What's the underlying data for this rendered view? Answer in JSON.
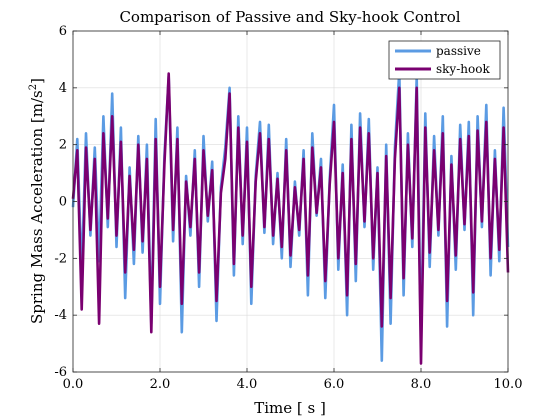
{
  "chart_data": {
    "type": "line",
    "title": "Comparison of Passive and Sky-hook Control",
    "xlabel": "Time [ s ]",
    "ylabel_main": "Spring Mass Acceleration [m/s",
    "ylabel_sup": "2",
    "ylabel_end": "]",
    "xlim": [
      0,
      10
    ],
    "ylim": [
      -6,
      6
    ],
    "xticks": [
      0,
      2,
      4,
      6,
      8,
      10
    ],
    "xtick_labels": [
      "0.0",
      "2.0",
      "4.0",
      "6.0",
      "8.0",
      "10.0"
    ],
    "yticks": [
      -6,
      -4,
      -2,
      0,
      2,
      4,
      6
    ],
    "ytick_labels": [
      "-6",
      "-4",
      "-2",
      "0",
      "2",
      "4",
      "6"
    ],
    "grid": true,
    "legend_position": "top-right",
    "series": [
      {
        "name": "passive",
        "color": "#5b9be3",
        "x": [
          0.0,
          0.1,
          0.2,
          0.3,
          0.4,
          0.5,
          0.6,
          0.7,
          0.8,
          0.9,
          1.0,
          1.1,
          1.2,
          1.3,
          1.4,
          1.5,
          1.6,
          1.7,
          1.8,
          1.9,
          2.0,
          2.1,
          2.2,
          2.3,
          2.4,
          2.5,
          2.6,
          2.7,
          2.8,
          2.9,
          3.0,
          3.1,
          3.2,
          3.3,
          3.4,
          3.5,
          3.6,
          3.7,
          3.8,
          3.9,
          4.0,
          4.1,
          4.2,
          4.3,
          4.4,
          4.5,
          4.6,
          4.7,
          4.8,
          4.9,
          5.0,
          5.1,
          5.2,
          5.3,
          5.4,
          5.5,
          5.6,
          5.7,
          5.8,
          5.9,
          6.0,
          6.1,
          6.2,
          6.3,
          6.4,
          6.5,
          6.6,
          6.7,
          6.8,
          6.9,
          7.0,
          7.1,
          7.2,
          7.3,
          7.4,
          7.5,
          7.6,
          7.7,
          7.8,
          7.9,
          8.0,
          8.1,
          8.2,
          8.3,
          8.4,
          8.5,
          8.6,
          8.7,
          8.8,
          8.9,
          9.0,
          9.1,
          9.2,
          9.3,
          9.4,
          9.5,
          9.6,
          9.7,
          9.8,
          9.9,
          10.0
        ],
        "y": [
          -0.2,
          2.2,
          -2.6,
          2.4,
          -1.2,
          1.9,
          -2.1,
          3.0,
          -0.9,
          3.8,
          -1.6,
          2.6,
          -3.4,
          1.2,
          -2.2,
          2.3,
          -1.8,
          2.0,
          -4.3,
          2.9,
          -3.6,
          1.6,
          4.4,
          -1.4,
          2.6,
          -4.6,
          0.9,
          -1.2,
          1.8,
          -3.0,
          2.3,
          -0.7,
          1.4,
          -4.2,
          0.5,
          1.9,
          4.0,
          -2.6,
          3.0,
          -1.5,
          2.6,
          -3.6,
          0.9,
          2.8,
          -1.1,
          2.7,
          -1.5,
          1.0,
          -2.0,
          2.2,
          -2.3,
          0.7,
          -1.2,
          1.8,
          -3.3,
          2.4,
          -0.5,
          1.5,
          -3.4,
          0.8,
          3.4,
          -2.4,
          1.3,
          -4.0,
          2.7,
          -2.8,
          3.1,
          -0.9,
          2.9,
          -2.4,
          1.2,
          -5.6,
          2.0,
          -4.3,
          1.9,
          4.6,
          -3.3,
          2.4,
          -1.6,
          4.4,
          -5.0,
          3.1,
          -2.3,
          2.3,
          -1.2,
          3.0,
          -4.4,
          1.6,
          -2.4,
          2.7,
          -1.0,
          2.8,
          -4.0,
          3.0,
          -0.9,
          3.4,
          -2.6,
          1.8,
          -2.1,
          3.3,
          -1.6
        ]
      },
      {
        "name": "sky-hook",
        "color": "#7a0070",
        "x": [
          0.0,
          0.1,
          0.2,
          0.3,
          0.4,
          0.5,
          0.6,
          0.7,
          0.8,
          0.9,
          1.0,
          1.1,
          1.2,
          1.3,
          1.4,
          1.5,
          1.6,
          1.7,
          1.8,
          1.9,
          2.0,
          2.1,
          2.2,
          2.3,
          2.4,
          2.5,
          2.6,
          2.7,
          2.8,
          2.9,
          3.0,
          3.1,
          3.2,
          3.3,
          3.4,
          3.5,
          3.6,
          3.7,
          3.8,
          3.9,
          4.0,
          4.1,
          4.2,
          4.3,
          4.4,
          4.5,
          4.6,
          4.7,
          4.8,
          4.9,
          5.0,
          5.1,
          5.2,
          5.3,
          5.4,
          5.5,
          5.6,
          5.7,
          5.8,
          5.9,
          6.0,
          6.1,
          6.2,
          6.3,
          6.4,
          6.5,
          6.6,
          6.7,
          6.8,
          6.9,
          7.0,
          7.1,
          7.2,
          7.3,
          7.4,
          7.5,
          7.6,
          7.7,
          7.8,
          7.9,
          8.0,
          8.1,
          8.2,
          8.3,
          8.4,
          8.5,
          8.6,
          8.7,
          8.8,
          8.9,
          9.0,
          9.1,
          9.2,
          9.3,
          9.4,
          9.5,
          9.6,
          9.7,
          9.8,
          9.9,
          10.0
        ],
        "y": [
          0.1,
          1.8,
          -3.8,
          1.9,
          -1.0,
          1.5,
          -4.3,
          2.4,
          -0.6,
          3.0,
          -1.2,
          2.1,
          -2.5,
          0.9,
          -1.7,
          2.0,
          -1.4,
          1.5,
          -4.6,
          2.2,
          -3.0,
          1.3,
          4.5,
          -1.0,
          2.2,
          -3.6,
          0.7,
          -0.9,
          1.5,
          -2.5,
          1.8,
          -0.5,
          1.1,
          -3.5,
          0.3,
          1.5,
          3.8,
          -2.2,
          2.6,
          -1.2,
          2.1,
          -3.0,
          0.7,
          2.4,
          -0.9,
          2.2,
          -1.2,
          0.8,
          -1.6,
          1.8,
          -1.9,
          0.5,
          -1.0,
          1.5,
          -2.6,
          1.9,
          -0.4,
          1.2,
          -2.8,
          0.6,
          2.8,
          -2.0,
          1.0,
          -3.3,
          2.2,
          -2.2,
          2.6,
          -0.7,
          2.4,
          -2.0,
          1.0,
          -4.4,
          1.6,
          -3.4,
          1.5,
          4.0,
          -2.7,
          2.0,
          -1.3,
          4.0,
          -5.7,
          2.6,
          -1.8,
          1.8,
          -1.0,
          2.4,
          -3.5,
          1.3,
          -1.9,
          2.2,
          -0.8,
          2.3,
          -3.2,
          2.5,
          -0.7,
          2.8,
          -2.0,
          1.5,
          -1.7,
          2.6,
          -2.5
        ]
      }
    ]
  }
}
